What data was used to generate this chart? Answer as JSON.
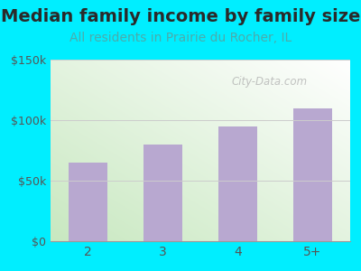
{
  "title": "Median family income by family size",
  "subtitle": "All residents in Prairie du Rocher, IL",
  "categories": [
    "2",
    "3",
    "4",
    "5+"
  ],
  "values": [
    65000,
    80000,
    95000,
    110000
  ],
  "bar_color": "#b8a8d0",
  "bg_outer": "#00eeff",
  "title_color": "#2a2a2a",
  "subtitle_color": "#4aacac",
  "axis_label_color": "#555555",
  "ytick_labels": [
    "$0",
    "$50k",
    "$100k",
    "$150k"
  ],
  "ytick_values": [
    0,
    50000,
    100000,
    150000
  ],
  "ylim": [
    0,
    150000
  ],
  "watermark": "City-Data.com",
  "title_fontsize": 14,
  "subtitle_fontsize": 10,
  "grad_color_green": "#c8e8c0",
  "grad_color_white": "#ffffff"
}
